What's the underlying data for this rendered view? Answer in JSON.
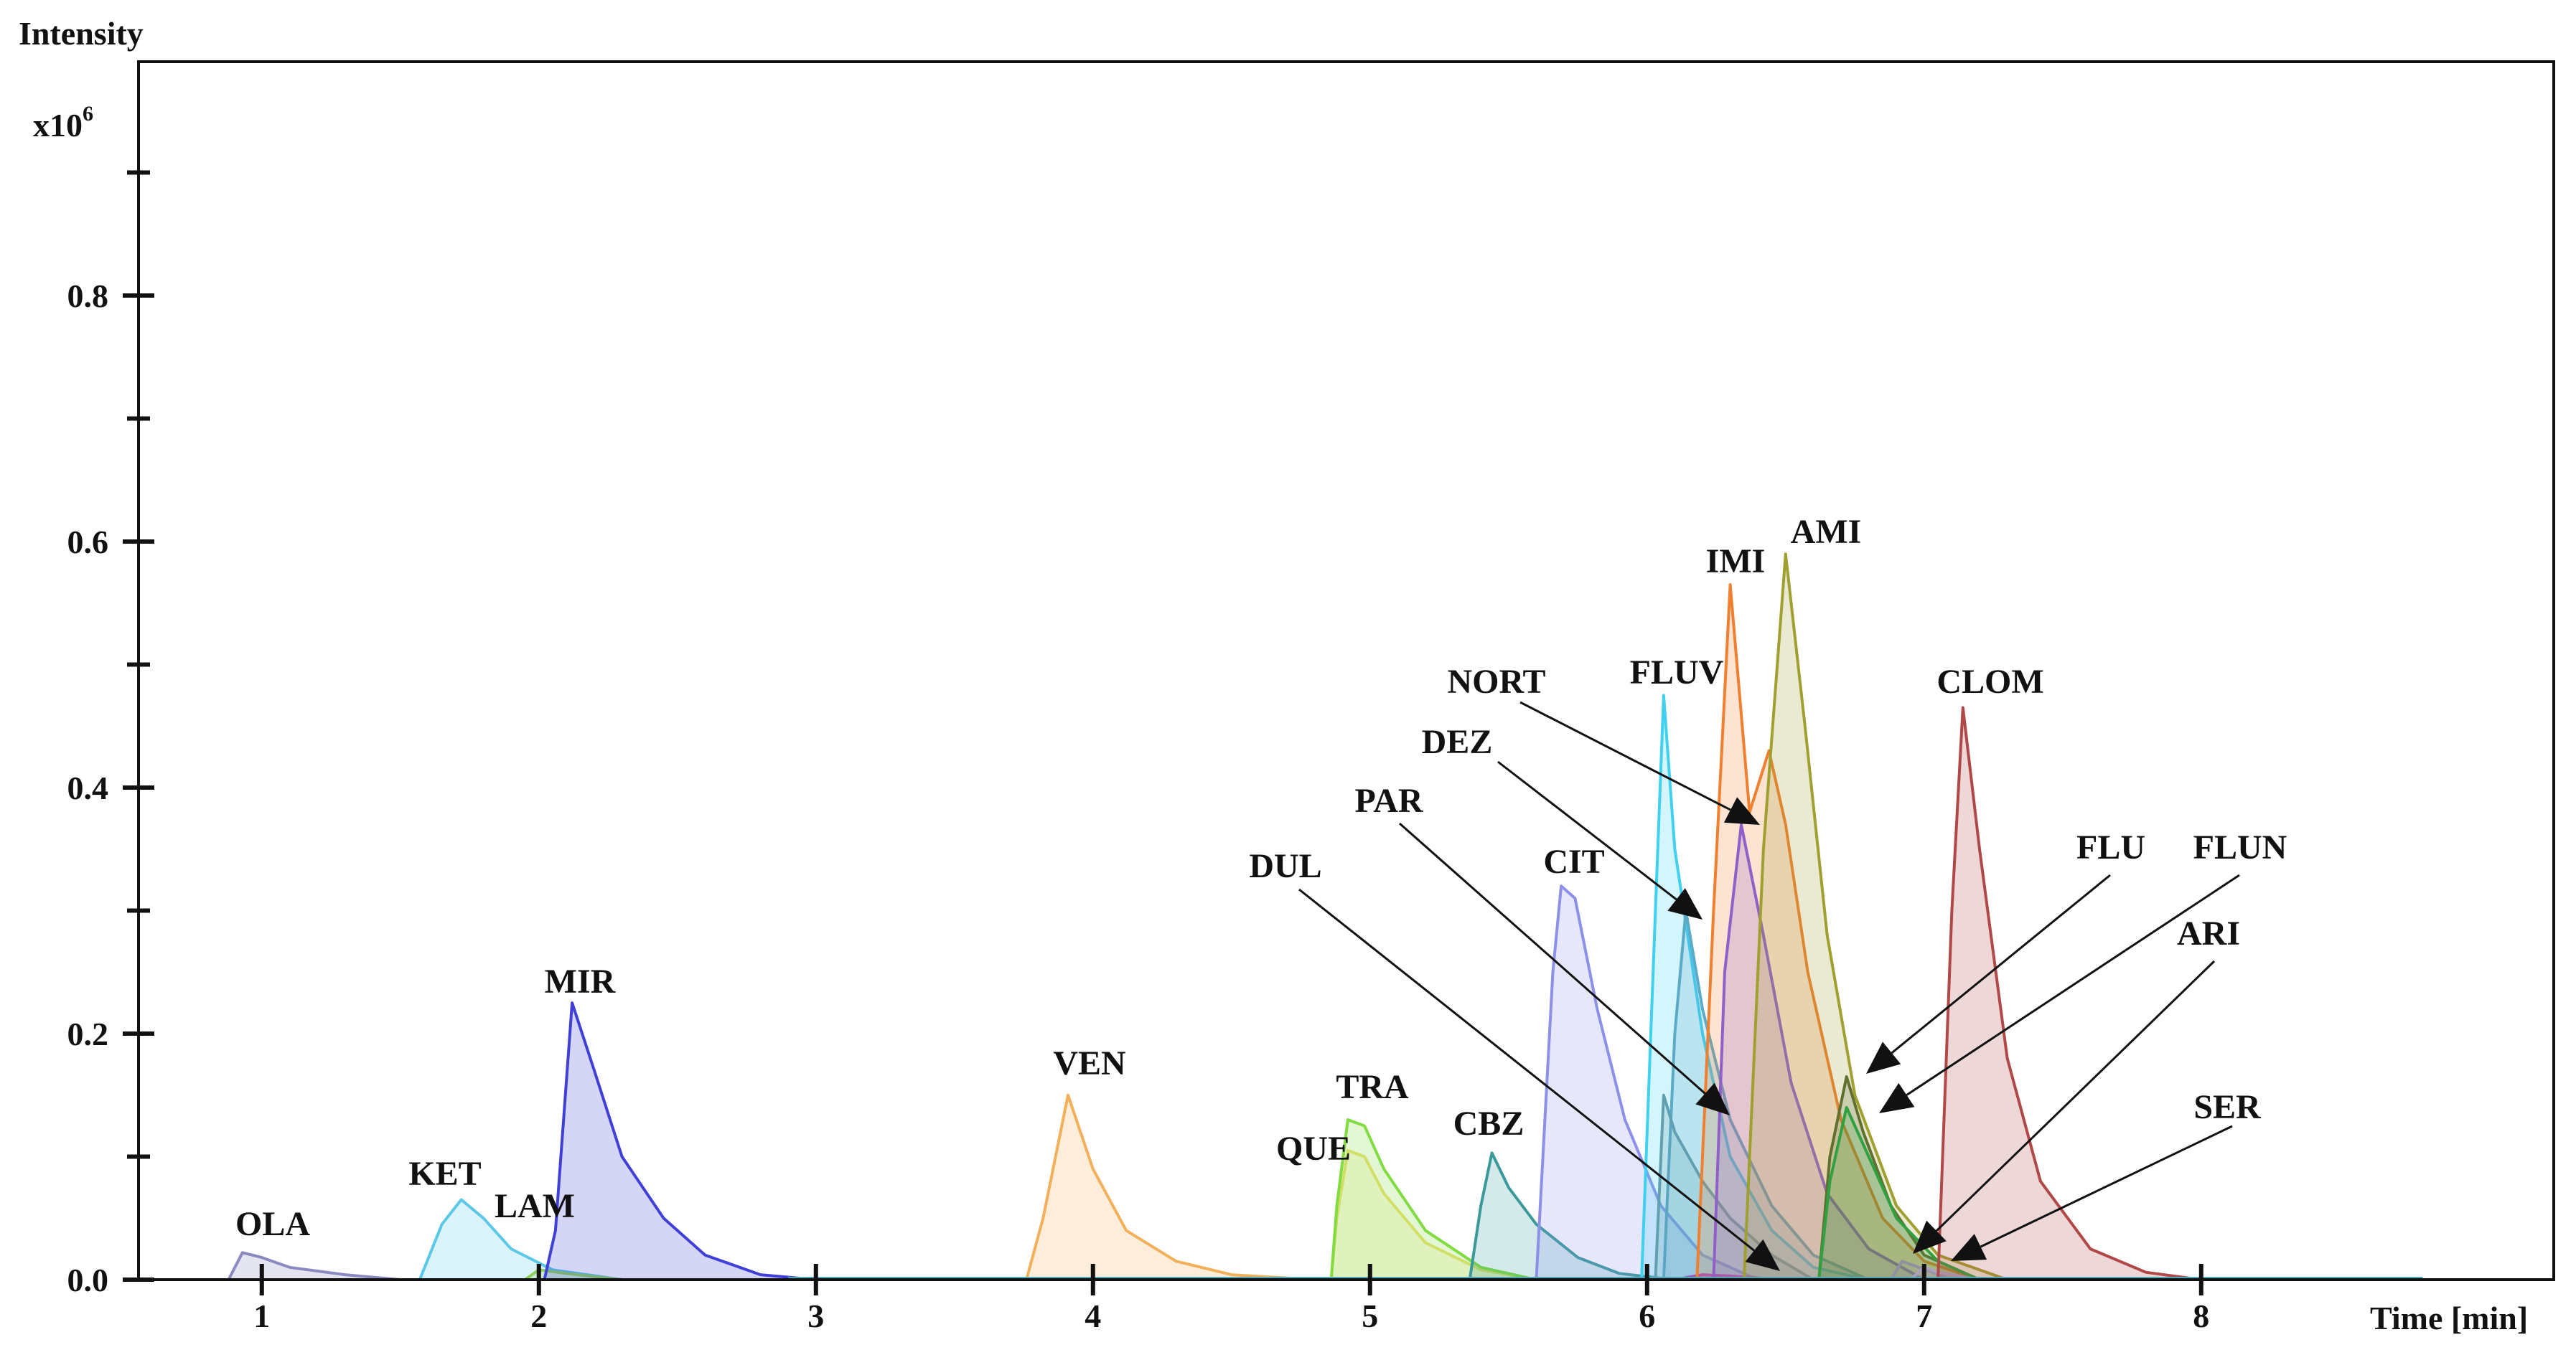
{
  "chart_data": {
    "type": "area",
    "title": "",
    "ylabel": "Intensity",
    "yunit": "x10",
    "yunit_exp": "6",
    "xlabel": "Time [min]",
    "xlim": [
      0.5,
      8.8
    ],
    "ylim": [
      0,
      1.0
    ],
    "xticks": [
      "1",
      "2",
      "3",
      "4",
      "5",
      "6",
      "7",
      "8"
    ],
    "xtick_values": [
      1,
      2,
      3,
      4,
      5,
      6,
      7,
      8
    ],
    "yticks": [
      "0.0",
      "0.2",
      "0.4",
      "0.6",
      "0.8"
    ],
    "ytick_values": [
      0.0,
      0.2,
      0.4,
      0.6,
      0.8
    ],
    "yminor_ticks": [
      0.1,
      0.3,
      0.5,
      0.7,
      0.9
    ],
    "grid": false,
    "series": [
      {
        "name": "OLA",
        "color": "#8a8ac0",
        "points": [
          [
            0.88,
            0
          ],
          [
            0.93,
            0.022
          ],
          [
            1.0,
            0.018
          ],
          [
            1.1,
            0.01
          ],
          [
            1.3,
            0.004
          ],
          [
            1.5,
            0
          ]
        ]
      },
      {
        "name": "KET",
        "color": "#5bc8e8",
        "points": [
          [
            1.57,
            0
          ],
          [
            1.65,
            0.045
          ],
          [
            1.72,
            0.065
          ],
          [
            1.8,
            0.05
          ],
          [
            1.9,
            0.025
          ],
          [
            2.05,
            0.008
          ],
          [
            2.3,
            0
          ]
        ]
      },
      {
        "name": "LAM",
        "color": "#8fd05a",
        "points": [
          [
            1.95,
            0
          ],
          [
            2.0,
            0.008
          ],
          [
            2.1,
            0.005
          ],
          [
            2.3,
            0
          ]
        ]
      },
      {
        "name": "MIR",
        "color": "#4040d8",
        "points": [
          [
            2.02,
            0
          ],
          [
            2.06,
            0.04
          ],
          [
            2.12,
            0.225
          ],
          [
            2.2,
            0.17
          ],
          [
            2.3,
            0.1
          ],
          [
            2.45,
            0.05
          ],
          [
            2.6,
            0.02
          ],
          [
            2.8,
            0.004
          ],
          [
            3.0,
            0
          ]
        ]
      },
      {
        "name": "VEN",
        "color": "#f3b05a",
        "points": [
          [
            3.76,
            0
          ],
          [
            3.82,
            0.05
          ],
          [
            3.91,
            0.15
          ],
          [
            4.0,
            0.09
          ],
          [
            4.12,
            0.04
          ],
          [
            4.3,
            0.015
          ],
          [
            4.5,
            0.004
          ],
          [
            4.8,
            0
          ]
        ]
      },
      {
        "name": "QUE",
        "color": "#e8e070",
        "points": [
          [
            4.86,
            0
          ],
          [
            4.88,
            0.05
          ],
          [
            4.92,
            0.105
          ],
          [
            4.98,
            0.1
          ],
          [
            5.05,
            0.07
          ],
          [
            5.2,
            0.03
          ],
          [
            5.4,
            0.008
          ],
          [
            5.6,
            0
          ]
        ]
      },
      {
        "name": "TRA",
        "color": "#80dc40",
        "points": [
          [
            4.86,
            0
          ],
          [
            4.88,
            0.06
          ],
          [
            4.92,
            0.13
          ],
          [
            4.98,
            0.125
          ],
          [
            5.05,
            0.09
          ],
          [
            5.2,
            0.04
          ],
          [
            5.4,
            0.01
          ],
          [
            5.6,
            0
          ]
        ]
      },
      {
        "name": "CBZ",
        "color": "#3a9a9a",
        "points": [
          [
            5.36,
            0
          ],
          [
            5.4,
            0.06
          ],
          [
            5.44,
            0.103
          ],
          [
            5.5,
            0.075
          ],
          [
            5.6,
            0.045
          ],
          [
            5.75,
            0.018
          ],
          [
            5.9,
            0.005
          ],
          [
            6.1,
            0
          ]
        ]
      },
      {
        "name": "CIT",
        "color": "#8c90e8",
        "points": [
          [
            5.6,
            0
          ],
          [
            5.66,
            0.25
          ],
          [
            5.69,
            0.32
          ],
          [
            5.74,
            0.31
          ],
          [
            5.82,
            0.22
          ],
          [
            5.92,
            0.13
          ],
          [
            6.05,
            0.06
          ],
          [
            6.2,
            0.02
          ],
          [
            6.4,
            0
          ]
        ]
      },
      {
        "name": "FLUV",
        "color": "#40d0f0",
        "points": [
          [
            5.98,
            0
          ],
          [
            6.03,
            0.3
          ],
          [
            6.06,
            0.475
          ],
          [
            6.1,
            0.35
          ],
          [
            6.2,
            0.2
          ],
          [
            6.3,
            0.1
          ],
          [
            6.45,
            0.04
          ],
          [
            6.6,
            0.01
          ],
          [
            6.8,
            0
          ]
        ]
      },
      {
        "name": "DEZ",
        "color": "#5aaac8",
        "points": [
          [
            6.06,
            0
          ],
          [
            6.1,
            0.2
          ],
          [
            6.14,
            0.3
          ],
          [
            6.2,
            0.22
          ],
          [
            6.3,
            0.13
          ],
          [
            6.45,
            0.06
          ],
          [
            6.6,
            0.02
          ],
          [
            6.8,
            0
          ]
        ]
      },
      {
        "name": "PAR",
        "color": "#60a0b0",
        "points": [
          [
            6.03,
            0
          ],
          [
            6.06,
            0.15
          ],
          [
            6.1,
            0.12
          ],
          [
            6.2,
            0.08
          ],
          [
            6.3,
            0.05
          ],
          [
            6.45,
            0.02
          ],
          [
            6.6,
            0
          ]
        ]
      },
      {
        "name": "DUL",
        "color": "#a050c0",
        "points": [
          [
            6.1,
            0
          ],
          [
            6.2,
            0.004
          ],
          [
            6.3,
            0.003
          ],
          [
            6.5,
            0
          ]
        ]
      },
      {
        "name": "IMI",
        "color": "#f08030",
        "points": [
          [
            6.18,
            0
          ],
          [
            6.24,
            0.3
          ],
          [
            6.3,
            0.565
          ],
          [
            6.37,
            0.38
          ],
          [
            6.44,
            0.43
          ],
          [
            6.5,
            0.37
          ],
          [
            6.58,
            0.25
          ],
          [
            6.7,
            0.13
          ],
          [
            6.85,
            0.05
          ],
          [
            7.0,
            0.015
          ],
          [
            7.2,
            0
          ]
        ]
      },
      {
        "name": "NORT",
        "color": "#9060c8",
        "points": [
          [
            6.24,
            0
          ],
          [
            6.28,
            0.25
          ],
          [
            6.34,
            0.37
          ],
          [
            6.42,
            0.28
          ],
          [
            6.52,
            0.16
          ],
          [
            6.65,
            0.07
          ],
          [
            6.8,
            0.025
          ],
          [
            7.0,
            0
          ]
        ]
      },
      {
        "name": "AMI",
        "color": "#a0a030",
        "points": [
          [
            6.35,
            0
          ],
          [
            6.42,
            0.35
          ],
          [
            6.5,
            0.59
          ],
          [
            6.57,
            0.45
          ],
          [
            6.65,
            0.28
          ],
          [
            6.75,
            0.15
          ],
          [
            6.9,
            0.06
          ],
          [
            7.05,
            0.02
          ],
          [
            7.3,
            0
          ]
        ]
      },
      {
        "name": "FLU",
        "color": "#607030",
        "points": [
          [
            6.62,
            0
          ],
          [
            6.66,
            0.1
          ],
          [
            6.72,
            0.165
          ],
          [
            6.78,
            0.12
          ],
          [
            6.88,
            0.06
          ],
          [
            7.0,
            0.02
          ],
          [
            7.2,
            0
          ]
        ]
      },
      {
        "name": "FLUN",
        "color": "#30a040",
        "points": [
          [
            6.62,
            0
          ],
          [
            6.66,
            0.08
          ],
          [
            6.72,
            0.14
          ],
          [
            6.8,
            0.1
          ],
          [
            6.9,
            0.05
          ],
          [
            7.05,
            0.015
          ],
          [
            7.2,
            0
          ]
        ]
      },
      {
        "name": "ARI",
        "color": "#9090a0",
        "points": [
          [
            6.88,
            0
          ],
          [
            6.92,
            0.015
          ],
          [
            6.98,
            0.01
          ],
          [
            7.1,
            0
          ]
        ]
      },
      {
        "name": "SER",
        "color": "#b0a0c0",
        "points": [
          [
            6.95,
            0
          ],
          [
            7.0,
            0.01
          ],
          [
            7.05,
            0.006
          ],
          [
            7.2,
            0
          ]
        ]
      },
      {
        "name": "CLOM",
        "color": "#b04848",
        "points": [
          [
            7.05,
            0
          ],
          [
            7.1,
            0.3
          ],
          [
            7.14,
            0.465
          ],
          [
            7.2,
            0.35
          ],
          [
            7.3,
            0.18
          ],
          [
            7.42,
            0.08
          ],
          [
            7.6,
            0.025
          ],
          [
            7.8,
            0.006
          ],
          [
            8.0,
            0
          ]
        ]
      }
    ],
    "annotations": [
      {
        "text": "OLA"
      },
      {
        "text": "KET"
      },
      {
        "text": "LAM"
      },
      {
        "text": "MIR"
      },
      {
        "text": "VEN"
      },
      {
        "text": "TRA"
      },
      {
        "text": "QUE"
      },
      {
        "text": "CBZ"
      },
      {
        "text": "CIT"
      },
      {
        "text": "FLUV"
      },
      {
        "text": "IMI"
      },
      {
        "text": "AMI"
      },
      {
        "text": "CLOM"
      },
      {
        "text": "NORT"
      },
      {
        "text": "DEZ"
      },
      {
        "text": "PAR"
      },
      {
        "text": "DUL"
      },
      {
        "text": "FLU"
      },
      {
        "text": "FLUN"
      },
      {
        "text": "ARI"
      },
      {
        "text": "SER"
      }
    ]
  }
}
